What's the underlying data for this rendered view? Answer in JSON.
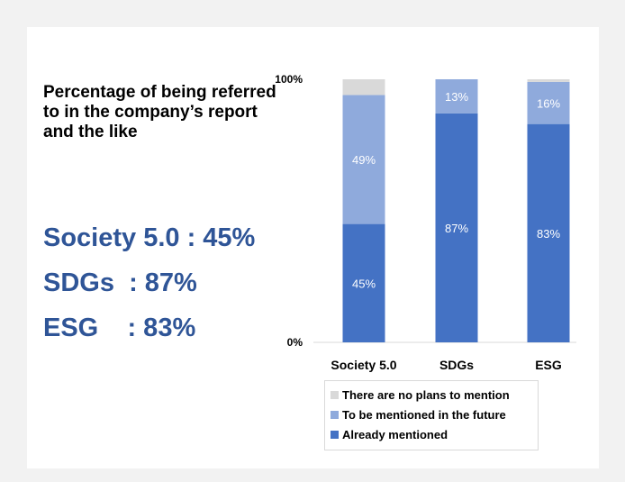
{
  "subtitle": "Percentage of being referred to in the company’s report and the like",
  "stats": [
    "Society 5.0 : 45%",
    "SDGs  : 87%",
    "ESG    : 83%"
  ],
  "colors": {
    "already": "#4472c4",
    "future": "#8faadc",
    "none": "#d9d9d9"
  },
  "chart_data": {
    "type": "bar",
    "stacked": true,
    "categories": [
      "Society 5.0",
      "SDGs",
      "ESG"
    ],
    "series": [
      {
        "name": "Already mentioned",
        "values": [
          45,
          87,
          83
        ],
        "labels": [
          "45%",
          "87%",
          "83%"
        ],
        "color": "#4472c4"
      },
      {
        "name": "To be mentioned in the future",
        "values": [
          49,
          13,
          16
        ],
        "labels": [
          "49%",
          "13%",
          "16%"
        ],
        "color": "#8faadc"
      },
      {
        "name": "There are no plans to mention",
        "values": [
          6,
          0,
          1
        ],
        "labels": [
          "",
          "",
          ""
        ],
        "color": "#d9d9d9"
      }
    ],
    "ylim": [
      0,
      100
    ],
    "yticks": [
      "0%",
      "100%"
    ],
    "legend_position": "bottom",
    "legend_order": [
      "There are no plans to mention",
      "To be mentioned in the future",
      "Already mentioned"
    ]
  }
}
